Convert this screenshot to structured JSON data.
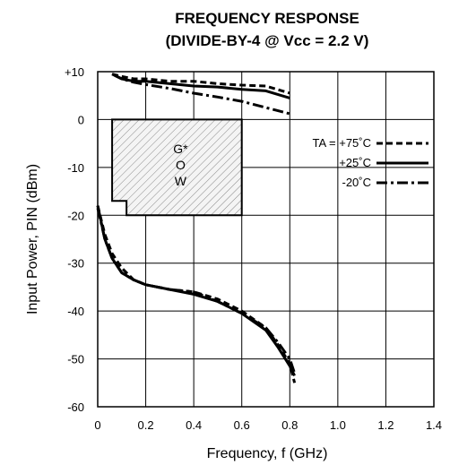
{
  "chart_data": {
    "type": "line",
    "title": "FREQUENCY RESPONSE",
    "subtitle": "(DIVIDE-BY-4 @ Vcc = 2.2 V)",
    "xlabel": "Frequency, f (GHz)",
    "ylabel": "Input Power, PIN (dBm)",
    "xlim": [
      0,
      1.4
    ],
    "ylim": [
      -60,
      10
    ],
    "x_ticks": [
      "0",
      "0.2",
      "0.4",
      "0.6",
      "0.8",
      "1.0",
      "1.2",
      "1.4"
    ],
    "y_ticks": [
      "+10",
      "0",
      "-10",
      "-20",
      "-30",
      "-40",
      "-50",
      "-60"
    ],
    "grid": true,
    "legend_position": "right",
    "series": [
      {
        "name": "TA = +75˚C",
        "style": "dashed",
        "upper": {
          "x": [
            0.06,
            0.1,
            0.15,
            0.2,
            0.3,
            0.4,
            0.5,
            0.6,
            0.7,
            0.8
          ],
          "y": [
            9.5,
            9,
            8.5,
            8.5,
            8,
            8,
            7.5,
            7.2,
            7,
            5.5
          ]
        },
        "lower": {
          "x": [
            0.0,
            0.03,
            0.06,
            0.1,
            0.15,
            0.2,
            0.3,
            0.4,
            0.5,
            0.6,
            0.7,
            0.75,
            0.8,
            0.82
          ],
          "y": [
            -18,
            -24,
            -28,
            -31,
            -33.5,
            -34.5,
            -35.5,
            -36,
            -37.5,
            -40,
            -43.5,
            -47,
            -51,
            -55
          ]
        }
      },
      {
        "name": "+25˚C",
        "style": "solid",
        "upper": {
          "x": [
            0.06,
            0.1,
            0.15,
            0.2,
            0.3,
            0.4,
            0.5,
            0.6,
            0.7,
            0.8
          ],
          "y": [
            9.5,
            8.5,
            8,
            8,
            7.5,
            7,
            6.8,
            6.3,
            6,
            4.5
          ]
        },
        "lower": {
          "x": [
            0.0,
            0.03,
            0.06,
            0.1,
            0.15,
            0.2,
            0.3,
            0.4,
            0.5,
            0.6,
            0.7,
            0.75,
            0.8,
            0.82
          ],
          "y": [
            -18,
            -25,
            -29,
            -32,
            -33.5,
            -34.5,
            -35.5,
            -36.5,
            -38,
            -40.5,
            -44,
            -47.5,
            -51.5,
            -53.5
          ]
        }
      },
      {
        "name": "-20˚C",
        "style": "dashdot",
        "upper": {
          "x": [
            0.06,
            0.1,
            0.15,
            0.2,
            0.3,
            0.4,
            0.5,
            0.6,
            0.7,
            0.8
          ],
          "y": [
            9.5,
            8.5,
            7.8,
            7.3,
            6.5,
            5.5,
            4.7,
            3.8,
            2.5,
            1.2
          ]
        },
        "lower": {
          "x": [
            0.0,
            0.03,
            0.06,
            0.1,
            0.15,
            0.2,
            0.3,
            0.4,
            0.5,
            0.6,
            0.7,
            0.75,
            0.8,
            0.82
          ],
          "y": [
            -18.5,
            -25,
            -29,
            -32,
            -33.5,
            -34.5,
            -35.5,
            -36,
            -38,
            -40.5,
            -43.5,
            -46.5,
            -50,
            -53
          ]
        }
      }
    ],
    "annotation_region": {
      "label_lines": [
        "G*",
        "O",
        "W"
      ],
      "fill": "hatched",
      "polygon_data": [
        [
          0.06,
          0
        ],
        [
          0.6,
          0
        ],
        [
          0.6,
          -20
        ],
        [
          0.12,
          -20
        ],
        [
          0.12,
          -17
        ],
        [
          0.06,
          -17
        ]
      ]
    }
  }
}
